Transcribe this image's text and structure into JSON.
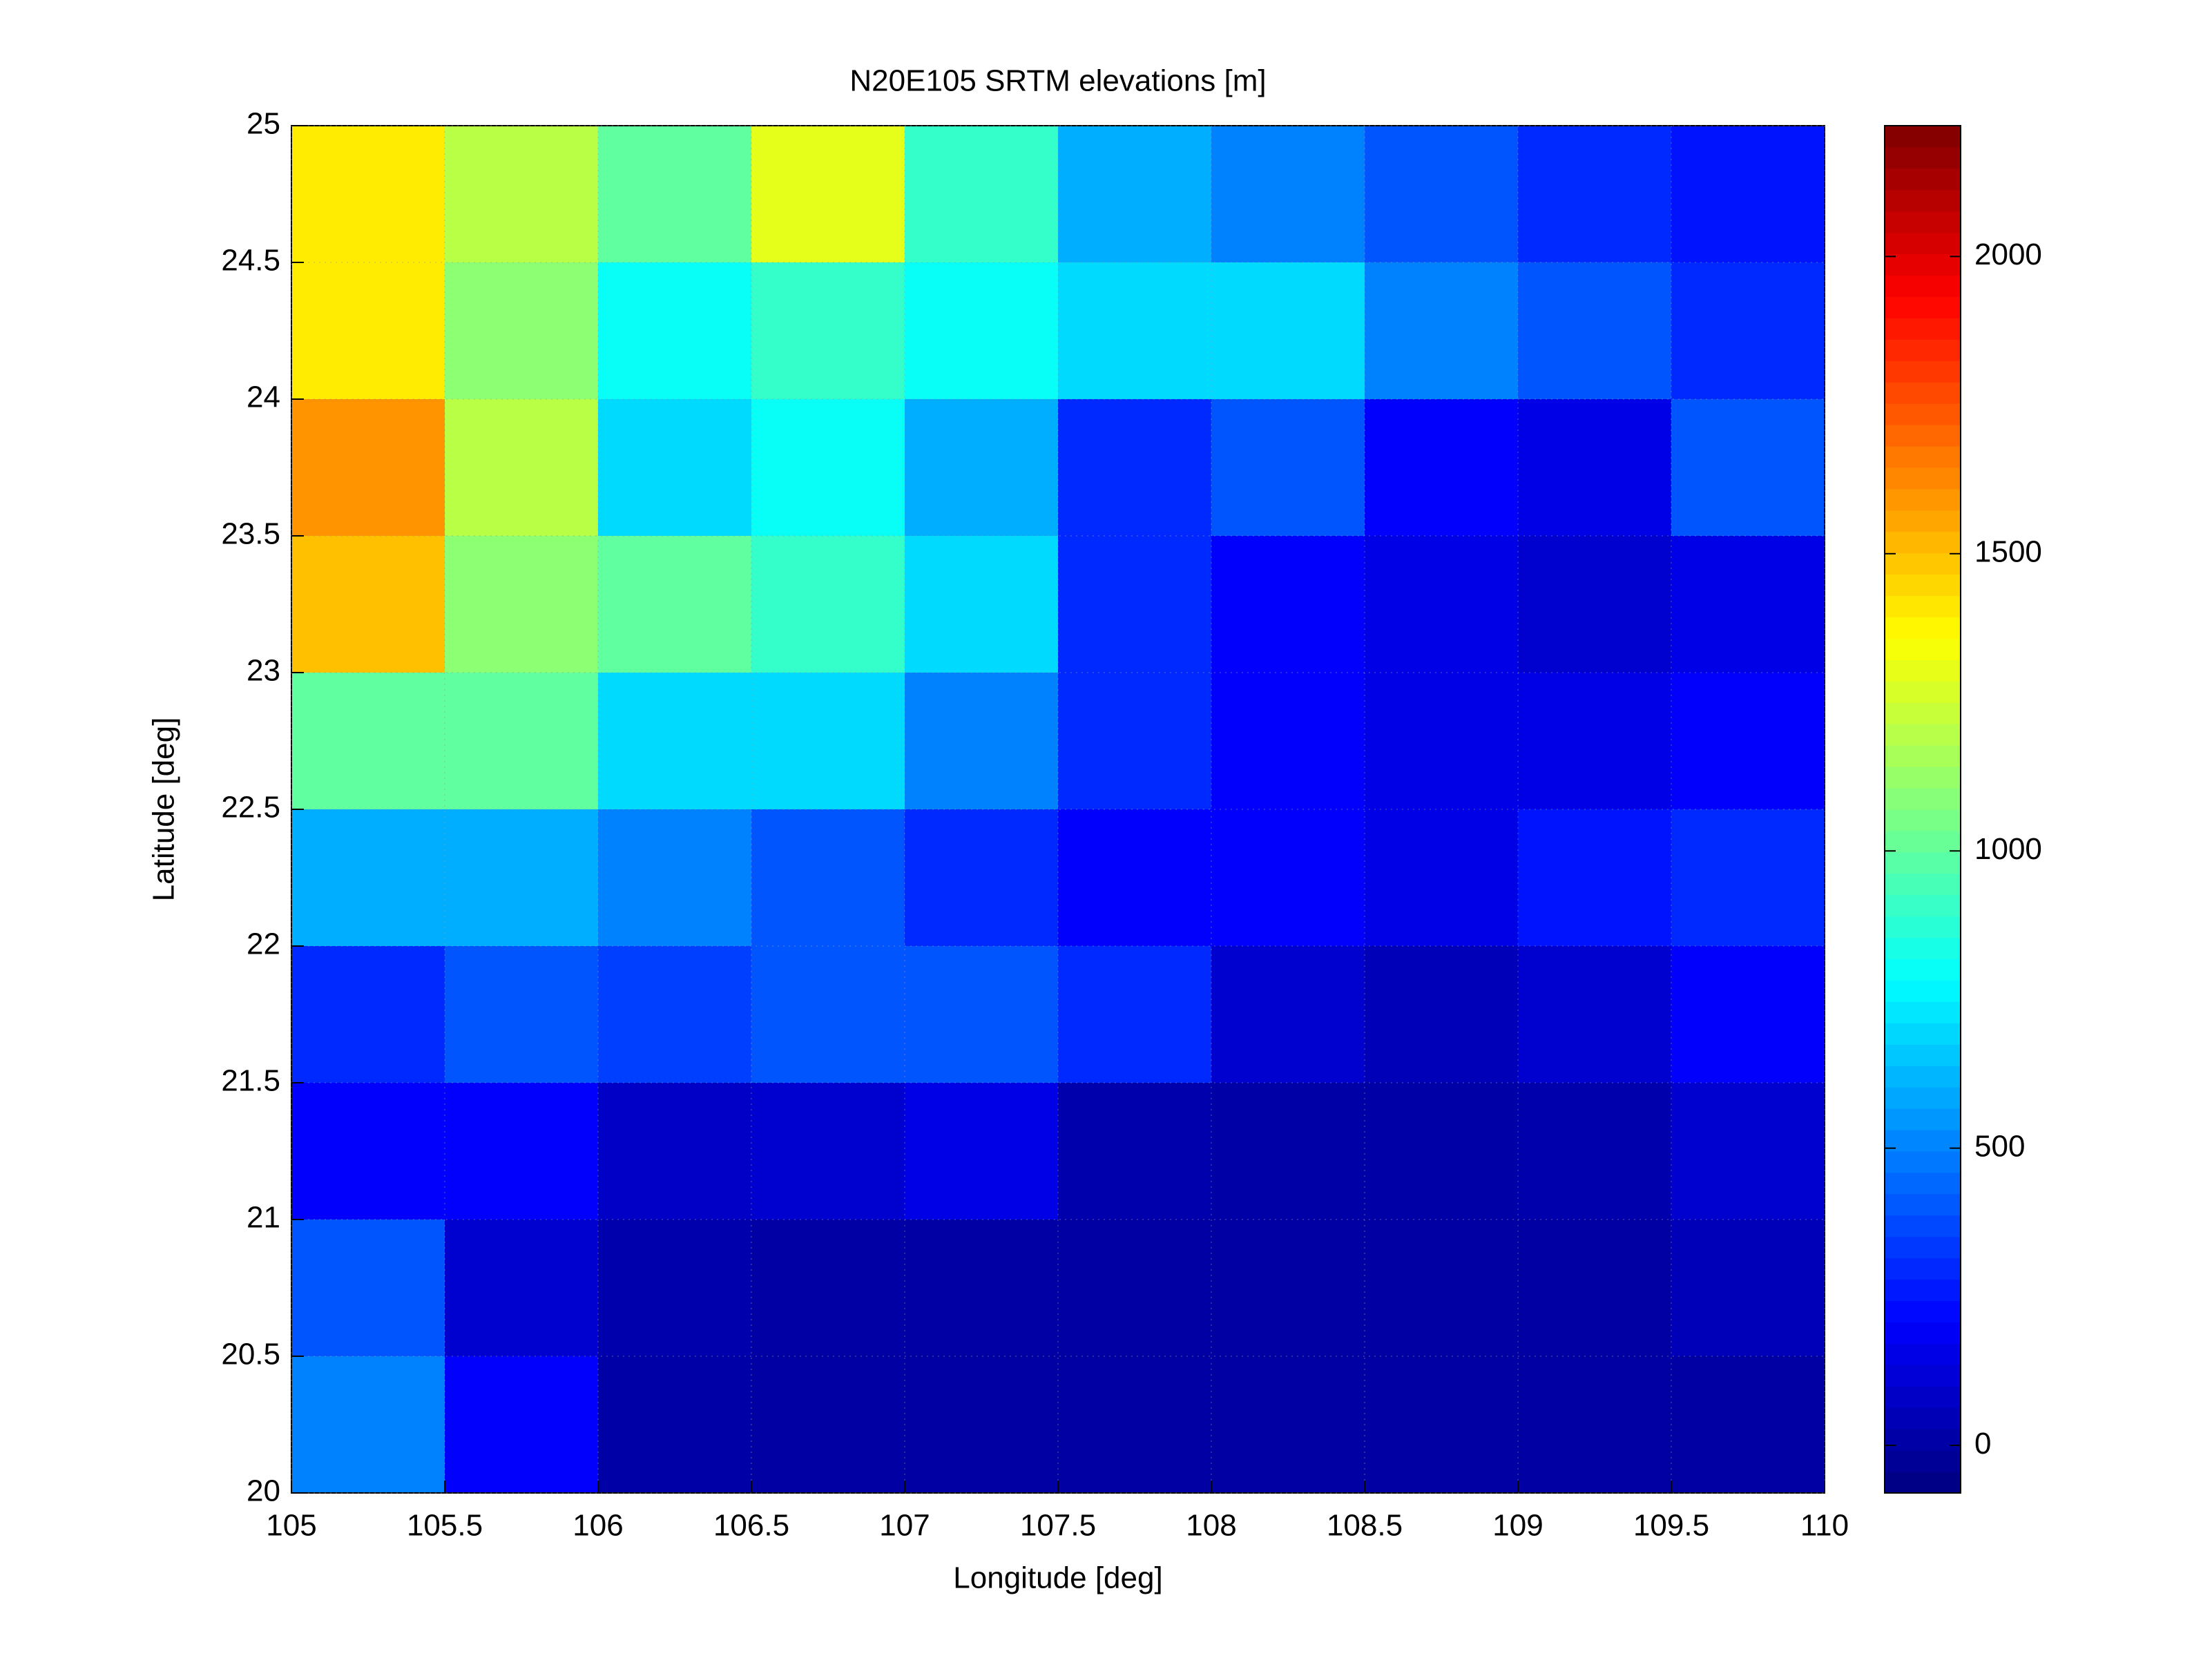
{
  "chart_data": {
    "type": "heatmap",
    "title": "N20E105 SRTM elevations [m]",
    "xlabel": "Longitude [deg]",
    "ylabel": "Latitude [deg]",
    "x": [
      105.25,
      105.75,
      106.25,
      106.75,
      107.25,
      107.75,
      108.25,
      108.75,
      109.25,
      109.75
    ],
    "y": [
      24.75,
      24.25,
      23.75,
      23.25,
      22.75,
      22.25,
      21.75,
      21.25,
      20.75,
      20.25
    ],
    "z": [
      [
        1400,
        1200,
        1000,
        1300,
        900,
        600,
        500,
        400,
        300,
        250
      ],
      [
        1400,
        1100,
        800,
        900,
        800,
        700,
        700,
        500,
        400,
        300
      ],
      [
        1600,
        1200,
        700,
        800,
        600,
        300,
        400,
        200,
        150,
        400
      ],
      [
        1500,
        1100,
        1000,
        900,
        700,
        300,
        200,
        150,
        100,
        150
      ],
      [
        1000,
        1000,
        700,
        700,
        500,
        300,
        200,
        150,
        150,
        200
      ],
      [
        600,
        600,
        500,
        400,
        300,
        200,
        200,
        150,
        250,
        300
      ],
      [
        300,
        400,
        350,
        400,
        400,
        300,
        100,
        50,
        100,
        200
      ],
      [
        200,
        200,
        80,
        100,
        150,
        20,
        10,
        10,
        20,
        100
      ],
      [
        400,
        100,
        20,
        5,
        5,
        0,
        0,
        0,
        0,
        50
      ],
      [
        500,
        200,
        10,
        0,
        0,
        0,
        0,
        0,
        0,
        0
      ]
    ],
    "xlim": [
      105,
      110
    ],
    "ylim": [
      20,
      25
    ],
    "xticks": [
      105,
      105.5,
      106,
      106.5,
      107,
      107.5,
      108,
      108.5,
      109,
      109.5,
      110
    ],
    "yticks": [
      20,
      20.5,
      21,
      21.5,
      22,
      22.5,
      23,
      23.5,
      24,
      24.5,
      25
    ],
    "clim": [
      -80,
      2220
    ],
    "cticks": [
      0,
      500,
      1000,
      1500,
      2000
    ],
    "colormap": "jet",
    "grid": true
  }
}
